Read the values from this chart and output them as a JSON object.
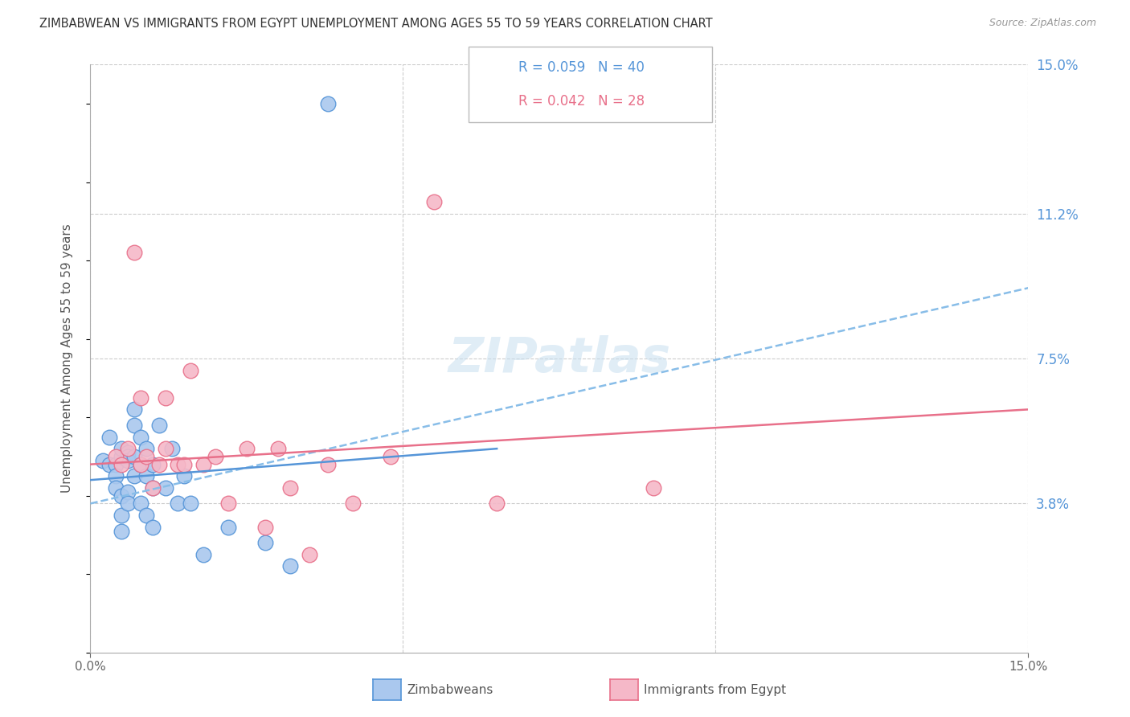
{
  "title": "ZIMBABWEAN VS IMMIGRANTS FROM EGYPT UNEMPLOYMENT AMONG AGES 55 TO 59 YEARS CORRELATION CHART",
  "source": "Source: ZipAtlas.com",
  "ylabel": "Unemployment Among Ages 55 to 59 years",
  "xlim": [
    0.0,
    0.15
  ],
  "ylim": [
    0.0,
    0.15
  ],
  "ytick_labels_right": [
    "15.0%",
    "11.2%",
    "7.5%",
    "3.8%"
  ],
  "ytick_positions_right": [
    0.15,
    0.112,
    0.075,
    0.038
  ],
  "background_color": "#ffffff",
  "grid_color": "#cccccc",
  "blue_color": "#aac8ee",
  "pink_color": "#f5b8c8",
  "line_blue_solid_color": "#5595d8",
  "line_blue_dash_color": "#88bde8",
  "line_pink_color": "#e8708a",
  "watermark": "ZIPatlas",
  "zimbabwe_x": [
    0.002,
    0.003,
    0.003,
    0.004,
    0.004,
    0.004,
    0.005,
    0.005,
    0.005,
    0.005,
    0.005,
    0.006,
    0.006,
    0.006,
    0.006,
    0.006,
    0.007,
    0.007,
    0.007,
    0.007,
    0.008,
    0.008,
    0.008,
    0.009,
    0.009,
    0.009,
    0.01,
    0.01,
    0.01,
    0.011,
    0.012,
    0.013,
    0.014,
    0.015,
    0.016,
    0.018,
    0.022,
    0.028,
    0.032,
    0.038
  ],
  "zimbabwe_y": [
    0.049,
    0.055,
    0.048,
    0.048,
    0.045,
    0.042,
    0.05,
    0.052,
    0.04,
    0.035,
    0.031,
    0.051,
    0.05,
    0.049,
    0.041,
    0.038,
    0.062,
    0.058,
    0.05,
    0.045,
    0.055,
    0.048,
    0.038,
    0.052,
    0.045,
    0.035,
    0.048,
    0.042,
    0.032,
    0.058,
    0.042,
    0.052,
    0.038,
    0.045,
    0.038,
    0.025,
    0.032,
    0.028,
    0.022,
    0.14
  ],
  "egypt_x": [
    0.004,
    0.005,
    0.006,
    0.007,
    0.008,
    0.008,
    0.009,
    0.01,
    0.011,
    0.012,
    0.012,
    0.014,
    0.015,
    0.016,
    0.018,
    0.02,
    0.022,
    0.025,
    0.028,
    0.03,
    0.032,
    0.035,
    0.038,
    0.042,
    0.048,
    0.055,
    0.065,
    0.09
  ],
  "egypt_y": [
    0.05,
    0.048,
    0.052,
    0.102,
    0.048,
    0.065,
    0.05,
    0.042,
    0.048,
    0.052,
    0.065,
    0.048,
    0.048,
    0.072,
    0.048,
    0.05,
    0.038,
    0.052,
    0.032,
    0.052,
    0.042,
    0.025,
    0.048,
    0.038,
    0.05,
    0.115,
    0.038,
    0.042
  ],
  "trend_blue_x0": 0.0,
  "trend_blue_y0": 0.038,
  "trend_blue_x1": 0.15,
  "trend_blue_y1": 0.093,
  "trend_pink_x0": 0.0,
  "trend_pink_y0": 0.048,
  "trend_pink_x1": 0.15,
  "trend_pink_y1": 0.062,
  "trend_blue_solid_x0": 0.0,
  "trend_blue_solid_y0": 0.044,
  "trend_blue_solid_x1": 0.065,
  "trend_blue_solid_y1": 0.052
}
